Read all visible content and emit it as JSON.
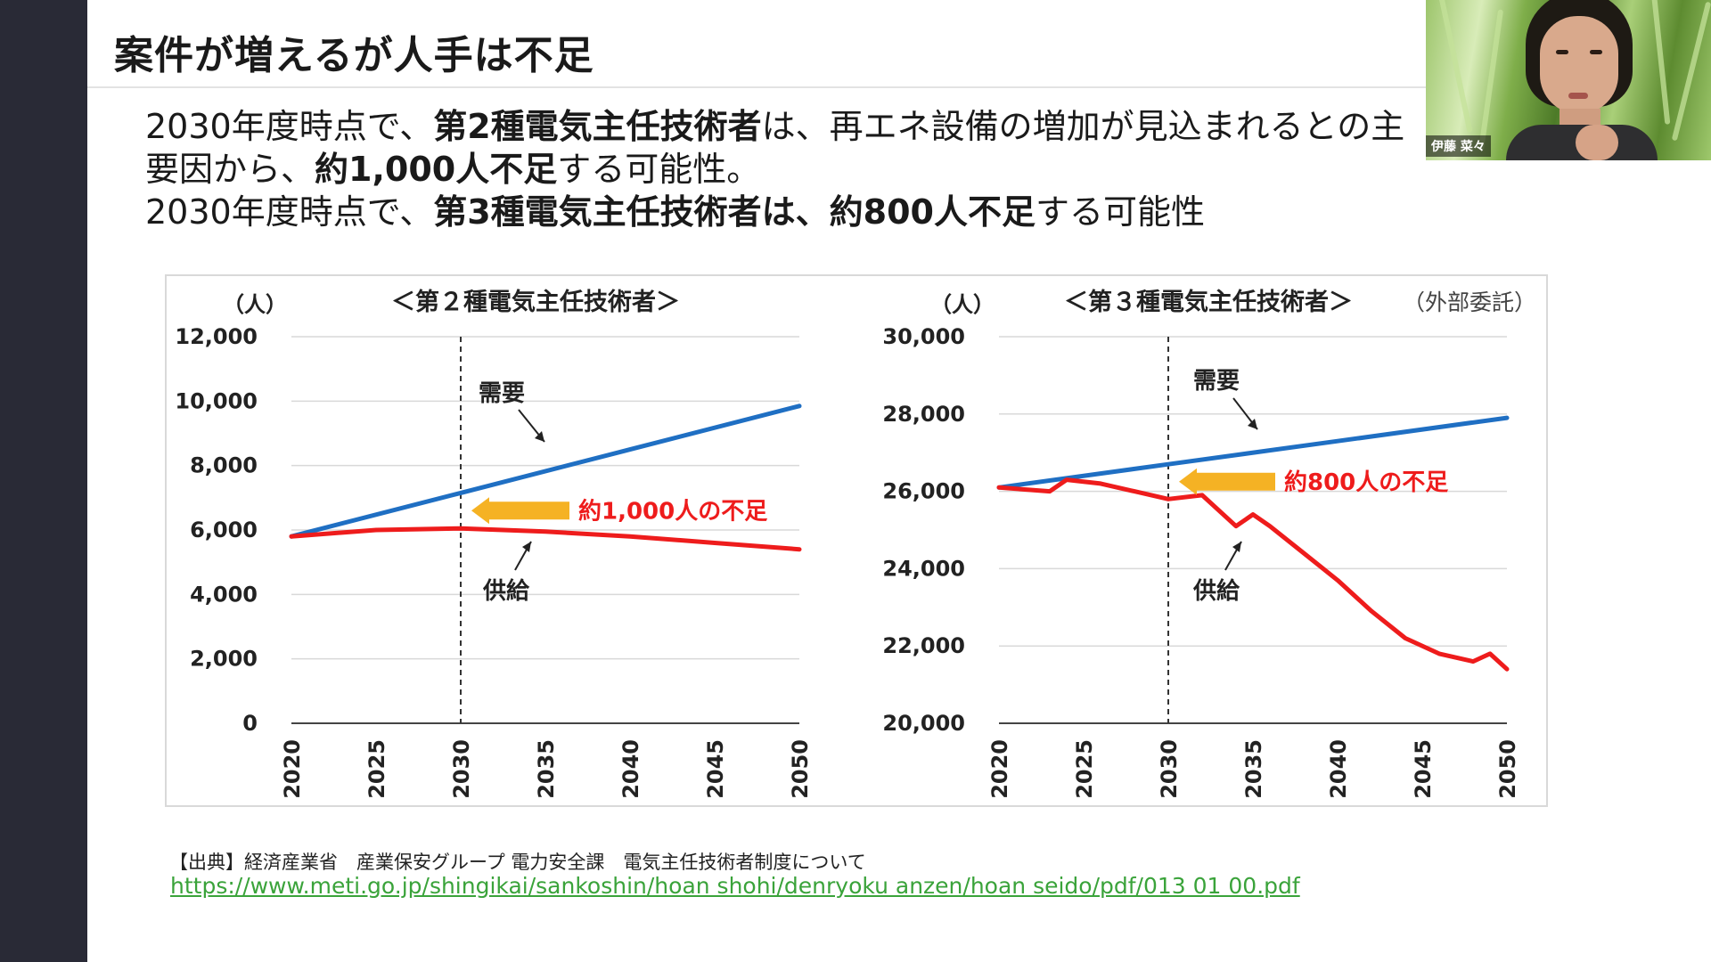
{
  "slide": {
    "title": "案件が増えるが人手は不足",
    "body": {
      "line1_pre": "2030年度時点で、",
      "line1_bold": "第2種電気主任技術者",
      "line1_post": "は、再エネ設備の増加が見込まれるとの主",
      "line2_pre": "要因から、",
      "line2_bold": "約1,000人不足",
      "line2_post": "する可能性。",
      "line3_pre": "2030年度時点で、",
      "line3_bold": "第3種電気主任技術者は、約800人不足",
      "line3_post": "する可能性"
    },
    "source_label": "【出典】経済産業省　産業保安グループ 電力安全課　電気主任技術者制度について",
    "source_url": "https://www.meti.go.jp/shingikai/sankoshin/hoan shohi/denryoku anzen/hoan seido/pdf/013 01 00.pdf"
  },
  "participant": {
    "name": "伊藤 菜々"
  },
  "colors": {
    "demand": "#1f6fc3",
    "supply": "#ee1c1c",
    "arrow": "#f5b224",
    "sidebar": "#292a36",
    "grid": "#d9d9d9"
  },
  "chart_data": [
    {
      "type": "line",
      "title": "＜第２種電気主任技術者＞",
      "ylabel": "（人）",
      "x_ticks": [
        "2020",
        "2025",
        "2030",
        "2035",
        "2040",
        "2045",
        "2050"
      ],
      "ylim": [
        0,
        12000
      ],
      "y_ticks": [
        "0",
        "2,000",
        "4,000",
        "6,000",
        "8,000",
        "10,000",
        "12,000"
      ],
      "y_tick_values": [
        0,
        2000,
        4000,
        6000,
        8000,
        10000,
        12000
      ],
      "grid": true,
      "series": [
        {
          "name": "需要",
          "x": [
            2020,
            2030,
            2040,
            2050
          ],
          "values": [
            5800,
            7150,
            8500,
            9850
          ]
        },
        {
          "name": "供給",
          "x": [
            2020,
            2025,
            2030,
            2035,
            2040,
            2045,
            2050
          ],
          "values": [
            5800,
            6000,
            6050,
            5950,
            5800,
            5600,
            5400
          ]
        }
      ],
      "marker_x": 2030,
      "shortfall_label": "約1,000人の不足",
      "shortfall_at": [
        2030,
        6600
      ],
      "demand_label": "需要",
      "supply_label": "供給"
    },
    {
      "type": "line",
      "title": "＜第３種電気主任技術者＞",
      "subtitle": "（外部委託）",
      "ylabel": "（人）",
      "x_ticks": [
        "2020",
        "2025",
        "2030",
        "2035",
        "2040",
        "2045",
        "2050"
      ],
      "ylim": [
        20000,
        30000
      ],
      "y_ticks": [
        "20,000",
        "22,000",
        "24,000",
        "26,000",
        "28,000",
        "30,000"
      ],
      "y_tick_values": [
        20000,
        22000,
        24000,
        26000,
        28000,
        30000
      ],
      "grid": true,
      "series": [
        {
          "name": "需要",
          "x": [
            2020,
            2030,
            2040,
            2050
          ],
          "values": [
            26100,
            26700,
            27300,
            27900
          ]
        },
        {
          "name": "供給",
          "x": [
            2020,
            2023,
            2024,
            2026,
            2028,
            2030,
            2032,
            2034,
            2035,
            2036,
            2038,
            2040,
            2042,
            2044,
            2046,
            2048,
            2049,
            2050
          ],
          "values": [
            26100,
            26000,
            26300,
            26200,
            26000,
            25800,
            25900,
            25100,
            25400,
            25100,
            24400,
            23700,
            22900,
            22200,
            21800,
            21600,
            21800,
            21400
          ]
        }
      ],
      "marker_x": 2030,
      "shortfall_label": "約800人の不足",
      "shortfall_at": [
        2030,
        26250
      ],
      "demand_label": "需要",
      "supply_label": "供給"
    }
  ]
}
